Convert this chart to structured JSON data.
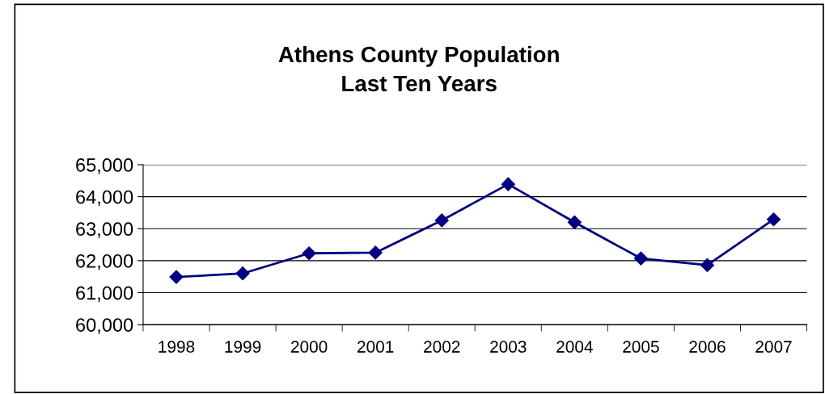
{
  "chart_data": {
    "type": "line",
    "title": "Athens County Population\nLast Ten Years",
    "categories": [
      "1998",
      "1999",
      "2000",
      "2001",
      "2002",
      "2003",
      "2004",
      "2005",
      "2006",
      "2007"
    ],
    "series": [
      {
        "color": "#000080",
        "values": [
          61490,
          61600,
          62230,
          62250,
          63260,
          64390,
          63200,
          62070,
          61860,
          63290
        ]
      }
    ],
    "ylim": [
      60000,
      65000
    ],
    "yticks": [
      {
        "value": 60000,
        "label": "60,000"
      },
      {
        "value": 61000,
        "label": "61,000"
      },
      {
        "value": 62000,
        "label": "62,000"
      },
      {
        "value": 63000,
        "label": "63,000"
      },
      {
        "value": 64000,
        "label": "64,000"
      },
      {
        "value": 65000,
        "label": "65,000"
      }
    ],
    "grid": "y",
    "marker": "diamond",
    "line_style": "solid"
  }
}
